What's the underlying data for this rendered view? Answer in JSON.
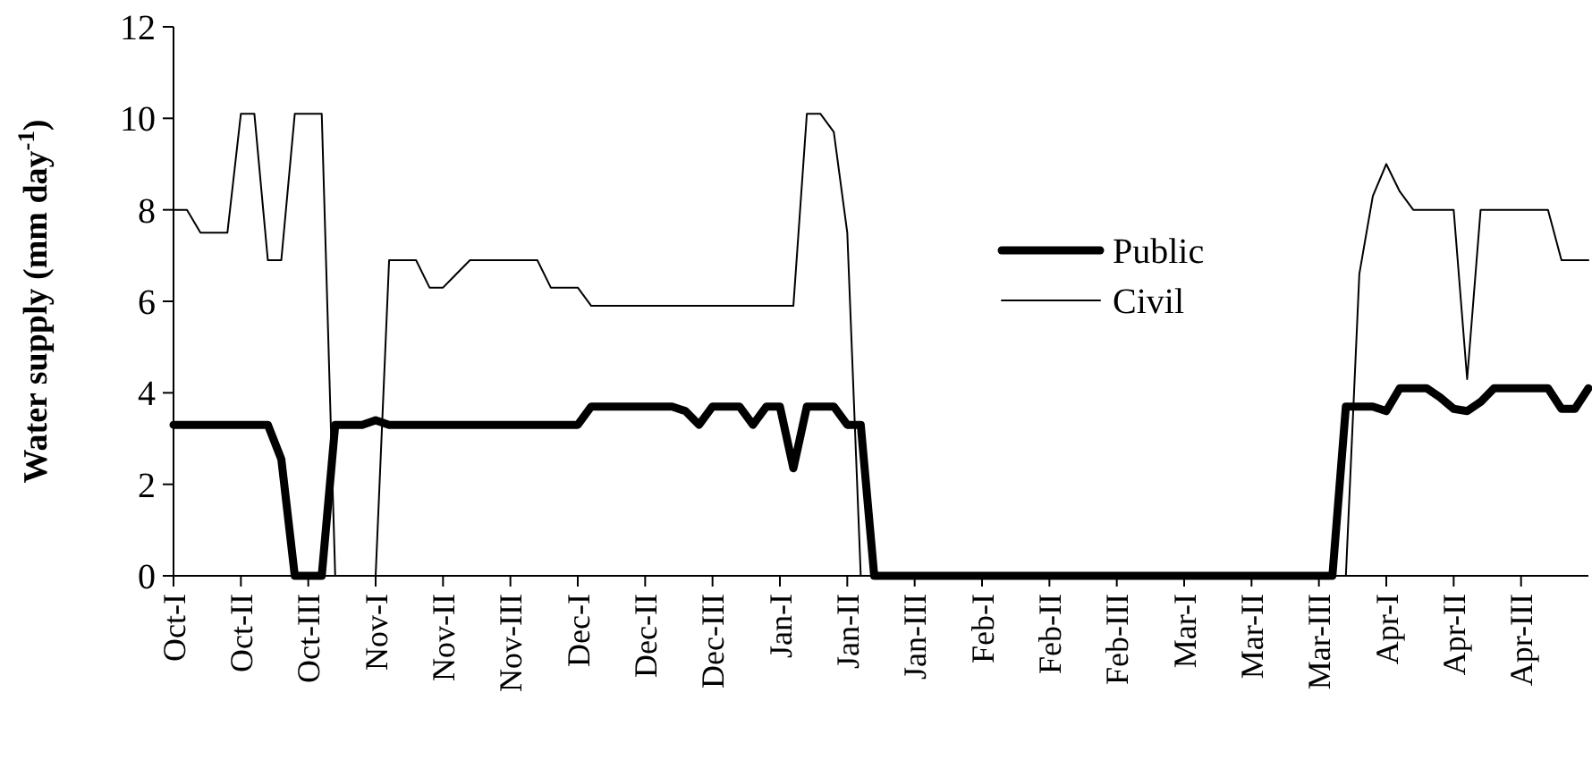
{
  "chart_data": {
    "type": "line",
    "ylabel": "Water supply (mm day$^{-1}$)",
    "ylim": [
      0,
      12
    ],
    "yticks": [
      0,
      2,
      4,
      6,
      8,
      10,
      12
    ],
    "categories": [
      "Oct-I",
      null,
      null,
      null,
      null,
      "Oct-II",
      null,
      null,
      null,
      null,
      "Oct-III",
      null,
      null,
      null,
      null,
      "Nov-I",
      null,
      null,
      null,
      null,
      "Nov-II",
      null,
      null,
      null,
      null,
      "Nov-III",
      null,
      null,
      null,
      null,
      "Dec-I",
      null,
      null,
      null,
      null,
      "Dec-II",
      null,
      null,
      null,
      null,
      "Dec-III",
      null,
      null,
      null,
      null,
      "Jan-I",
      null,
      null,
      null,
      null,
      "Jan-II",
      null,
      null,
      null,
      null,
      "Jan-III",
      null,
      null,
      null,
      null,
      "Feb-I",
      null,
      null,
      null,
      null,
      "Feb-II",
      null,
      null,
      null,
      null,
      "Feb-III",
      null,
      null,
      null,
      null,
      "Mar-I",
      null,
      null,
      null,
      null,
      "Mar-II",
      null,
      null,
      null,
      null,
      "Mar-III",
      null,
      null,
      null,
      null,
      "Apr-I",
      null,
      null,
      null,
      null,
      "Apr-II",
      null,
      null,
      null,
      null,
      "Apr-III",
      null,
      null,
      null,
      null,
      null
    ],
    "grid": false,
    "legend": "right",
    "marker": "none",
    "series": [
      {
        "name": "Public",
        "color": "#000000",
        "values": [
          3.3,
          3.3,
          3.3,
          3.3,
          3.3,
          3.3,
          3.3,
          3.3,
          2.55,
          0,
          0,
          0,
          3.3,
          3.3,
          3.3,
          3.4,
          3.3,
          3.3,
          3.3,
          3.3,
          3.3,
          3.3,
          3.3,
          3.3,
          3.3,
          3.3,
          3.3,
          3.3,
          3.3,
          3.3,
          3.3,
          3.7,
          3.7,
          3.7,
          3.7,
          3.7,
          3.7,
          3.7,
          3.6,
          3.3,
          3.7,
          3.7,
          3.7,
          3.3,
          3.7,
          3.7,
          2.35,
          3.7,
          3.7,
          3.7,
          3.3,
          3.3,
          0,
          0,
          0,
          0,
          0,
          0,
          0,
          0,
          0,
          0,
          0,
          0,
          0,
          0,
          0,
          0,
          0,
          0,
          0,
          0,
          0,
          0,
          0,
          0,
          0,
          0,
          0,
          0,
          0,
          0,
          0,
          0,
          0,
          0,
          0,
          3.7,
          3.7,
          3.7,
          3.6,
          4.1,
          4.1,
          4.1,
          3.9,
          3.65,
          3.6,
          3.8,
          4.1,
          4.1,
          4.1,
          4.1,
          4.1,
          3.65,
          3.65,
          4.1
        ]
      },
      {
        "name": "Civil",
        "color": "#000000",
        "values": [
          8,
          8,
          7.5,
          7.5,
          7.5,
          10.1,
          10.1,
          6.9,
          6.9,
          10.1,
          10.1,
          10.1,
          0,
          0,
          0,
          0,
          6.9,
          6.9,
          6.9,
          6.3,
          6.3,
          6.6,
          6.9,
          6.9,
          6.9,
          6.9,
          6.9,
          6.9,
          6.3,
          6.3,
          6.3,
          5.9,
          5.9,
          5.9,
          5.9,
          5.9,
          5.9,
          5.9,
          5.9,
          5.9,
          5.9,
          5.9,
          5.9,
          5.9,
          5.9,
          5.9,
          5.9,
          10.1,
          10.1,
          9.7,
          7.5,
          0,
          0,
          0,
          0,
          0,
          0,
          0,
          0,
          0,
          0,
          0,
          0,
          0,
          0,
          0,
          0,
          0,
          0,
          0,
          0,
          0,
          0,
          0,
          0,
          0,
          0,
          0,
          0,
          0,
          0,
          0,
          0,
          0,
          0,
          0,
          0,
          0,
          6.6,
          8.3,
          9,
          8.4,
          8,
          8,
          8,
          8,
          4.3,
          8,
          8,
          8,
          8,
          8,
          8,
          6.9,
          6.9,
          6.9
        ]
      }
    ]
  }
}
